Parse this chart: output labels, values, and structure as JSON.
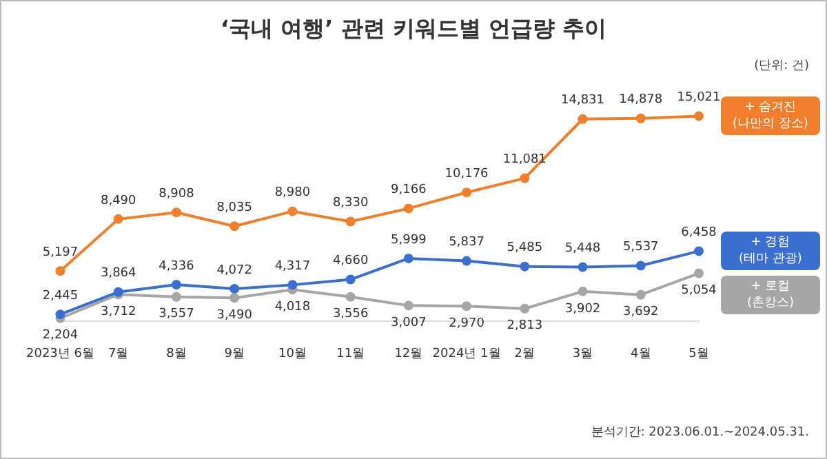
{
  "chart_data": {
    "type": "line",
    "title": "‘국내 여행’ 관련 키워드별 언급량 추이",
    "categories": [
      "2023년 6월",
      "7월",
      "8월",
      "9월",
      "10월",
      "11월",
      "12월",
      "2024년 1월",
      "2월",
      "3월",
      "4월",
      "5월"
    ],
    "series": [
      {
        "name": "+ 숨겨진 (나만의 장소)",
        "color": "#f07f2d",
        "values": [
          5197,
          8490,
          8908,
          8035,
          8980,
          8330,
          9166,
          10176,
          11081,
          14831,
          14878,
          15021
        ],
        "value_labels": [
          "5,197",
          "8,490",
          "8,908",
          "8,035",
          "8,980",
          "8,330",
          "9,166",
          "10,176",
          "11,081",
          "14,831",
          "14,878",
          "15,021"
        ]
      },
      {
        "name": "+ 경험 (테마 관광)",
        "color": "#3b6fcf",
        "values": [
          2445,
          3864,
          4336,
          4072,
          4317,
          4660,
          5999,
          5837,
          5485,
          5448,
          5537,
          6458
        ],
        "value_labels": [
          "2,445",
          "3,864",
          "4,336",
          "4,072",
          "4,317",
          "4,660",
          "5,999",
          "5,837",
          "5,485",
          "5,448",
          "5,537",
          "6,458"
        ]
      },
      {
        "name": "+ 로컬 (촌캉스)",
        "color": "#a6a6a6",
        "values": [
          2204,
          3712,
          3557,
          3490,
          4018,
          3556,
          3007,
          2970,
          2813,
          3902,
          3692,
          5054
        ],
        "value_labels": [
          "2,204",
          "3,712",
          "3,557",
          "3,490",
          "4,018",
          "3,556",
          "3,007",
          "2,970",
          "2,813",
          "3,902",
          "3,692",
          "5,054"
        ]
      }
    ],
    "legend": "right",
    "marker": "circle",
    "annotations": [
      "(단위: 건)",
      "분석기간: 2023.06.01.~2024.05.31."
    ]
  }
}
